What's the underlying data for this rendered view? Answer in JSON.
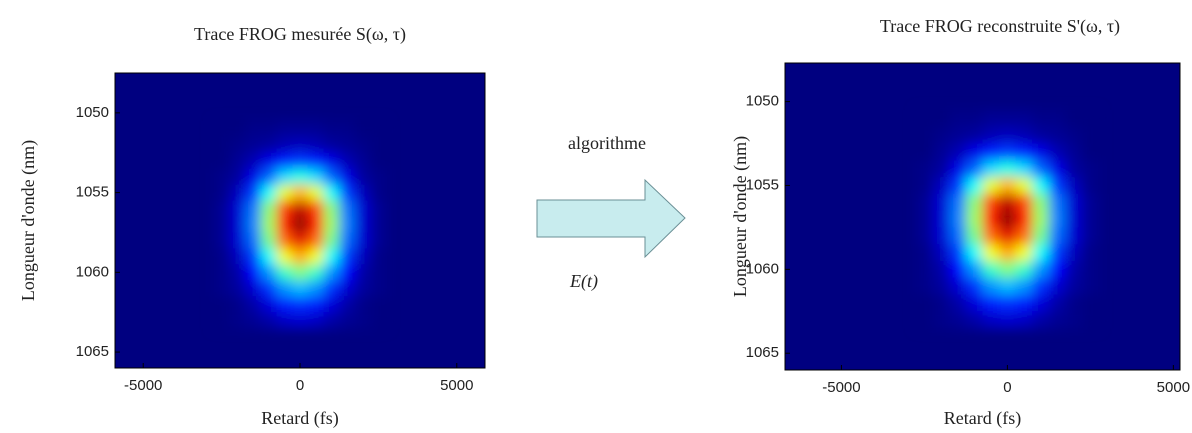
{
  "chart_data": [
    {
      "type": "heatmap",
      "title": "Trace FROG mesurée S(ω, τ)",
      "x_label": "Retard (fs)",
      "y_label": "Longueur d'onde (nm)",
      "colormap": "jet",
      "xlim": [
        -5900,
        5900
      ],
      "ylim": [
        1066,
        1047.5
      ],
      "xticks": [
        -5000,
        0,
        5000
      ],
      "yticks": [
        1050,
        1055,
        1060,
        1065
      ],
      "x": [
        -2500,
        -2000,
        -1500,
        -1000,
        -500,
        0,
        500,
        1000,
        1500,
        2000,
        2500
      ],
      "y": [
        1051,
        1052,
        1053,
        1054,
        1055,
        1056,
        1057,
        1058,
        1059,
        1060,
        1061,
        1062,
        1063
      ],
      "values": [
        [
          0,
          0,
          0.01,
          0.01,
          0.02,
          0.02,
          0.02,
          0.01,
          0.01,
          0,
          0
        ],
        [
          0,
          0.01,
          0.02,
          0.03,
          0.05,
          0.06,
          0.05,
          0.03,
          0.02,
          0.01,
          0
        ],
        [
          0,
          0.02,
          0.05,
          0.1,
          0.15,
          0.18,
          0.15,
          0.1,
          0.05,
          0.02,
          0
        ],
        [
          0.01,
          0.03,
          0.1,
          0.22,
          0.34,
          0.4,
          0.34,
          0.22,
          0.1,
          0.03,
          0.01
        ],
        [
          0.01,
          0.06,
          0.18,
          0.38,
          0.6,
          0.7,
          0.6,
          0.38,
          0.18,
          0.06,
          0.01
        ],
        [
          0.02,
          0.08,
          0.24,
          0.51,
          0.81,
          0.94,
          0.81,
          0.51,
          0.24,
          0.08,
          0.02
        ],
        [
          0.02,
          0.08,
          0.25,
          0.53,
          0.85,
          0.99,
          0.85,
          0.53,
          0.25,
          0.08,
          0.02
        ],
        [
          0.02,
          0.08,
          0.23,
          0.49,
          0.77,
          0.9,
          0.77,
          0.49,
          0.23,
          0.08,
          0.02
        ],
        [
          0.01,
          0.06,
          0.18,
          0.38,
          0.61,
          0.71,
          0.61,
          0.38,
          0.18,
          0.06,
          0.01
        ],
        [
          0.01,
          0.04,
          0.13,
          0.27,
          0.43,
          0.5,
          0.43,
          0.27,
          0.13,
          0.04,
          0.01
        ],
        [
          0.01,
          0.03,
          0.08,
          0.17,
          0.27,
          0.31,
          0.27,
          0.17,
          0.08,
          0.03,
          0.01
        ],
        [
          0,
          0.01,
          0.04,
          0.09,
          0.15,
          0.17,
          0.15,
          0.09,
          0.04,
          0.01,
          0
        ],
        [
          0,
          0.01,
          0.02,
          0.04,
          0.07,
          0.08,
          0.07,
          0.04,
          0.02,
          0.01,
          0
        ]
      ]
    },
    {
      "type": "heatmap",
      "title": "Trace FROG reconstruite S'(ω, τ)",
      "x_label": "Retard (fs)",
      "y_label": "Longueur d'onde (nm)",
      "colormap": "jet",
      "xlim": [
        -6700,
        5200
      ],
      "ylim": [
        1066,
        1047.7
      ],
      "xticks": [
        -5000,
        0,
        5000
      ],
      "yticks": [
        1050,
        1055,
        1060,
        1065
      ],
      "x": [
        -2500,
        -2000,
        -1500,
        -1000,
        -500,
        0,
        500,
        1000,
        1500,
        2000,
        2500
      ],
      "y": [
        1051,
        1052,
        1053,
        1054,
        1055,
        1056,
        1057,
        1058,
        1059,
        1060,
        1061,
        1062,
        1063
      ],
      "values": [
        [
          0,
          0,
          0.01,
          0.01,
          0.02,
          0.02,
          0.02,
          0.01,
          0.01,
          0,
          0
        ],
        [
          0,
          0.01,
          0.02,
          0.03,
          0.05,
          0.06,
          0.05,
          0.03,
          0.02,
          0.01,
          0
        ],
        [
          0,
          0.02,
          0.05,
          0.1,
          0.15,
          0.18,
          0.15,
          0.1,
          0.05,
          0.02,
          0
        ],
        [
          0.01,
          0.03,
          0.1,
          0.22,
          0.34,
          0.4,
          0.34,
          0.22,
          0.1,
          0.03,
          0.01
        ],
        [
          0.01,
          0.06,
          0.18,
          0.38,
          0.6,
          0.7,
          0.6,
          0.38,
          0.18,
          0.06,
          0.01
        ],
        [
          0.02,
          0.08,
          0.24,
          0.51,
          0.81,
          0.94,
          0.81,
          0.51,
          0.24,
          0.08,
          0.02
        ],
        [
          0.02,
          0.08,
          0.25,
          0.53,
          0.85,
          0.99,
          0.85,
          0.53,
          0.25,
          0.08,
          0.02
        ],
        [
          0.02,
          0.08,
          0.23,
          0.49,
          0.77,
          0.9,
          0.77,
          0.49,
          0.23,
          0.08,
          0.02
        ],
        [
          0.01,
          0.06,
          0.18,
          0.38,
          0.61,
          0.71,
          0.61,
          0.38,
          0.18,
          0.06,
          0.01
        ],
        [
          0.01,
          0.04,
          0.13,
          0.27,
          0.43,
          0.5,
          0.43,
          0.27,
          0.13,
          0.04,
          0.01
        ],
        [
          0.01,
          0.03,
          0.08,
          0.17,
          0.27,
          0.31,
          0.27,
          0.17,
          0.08,
          0.03,
          0.01
        ],
        [
          0,
          0.01,
          0.04,
          0.09,
          0.15,
          0.17,
          0.15,
          0.09,
          0.04,
          0.01,
          0
        ],
        [
          0,
          0.01,
          0.02,
          0.04,
          0.07,
          0.08,
          0.07,
          0.04,
          0.02,
          0.01,
          0
        ]
      ]
    }
  ],
  "diagram": {
    "arrow_label": "algorithme",
    "arrow_sublabel": "E(t)"
  }
}
